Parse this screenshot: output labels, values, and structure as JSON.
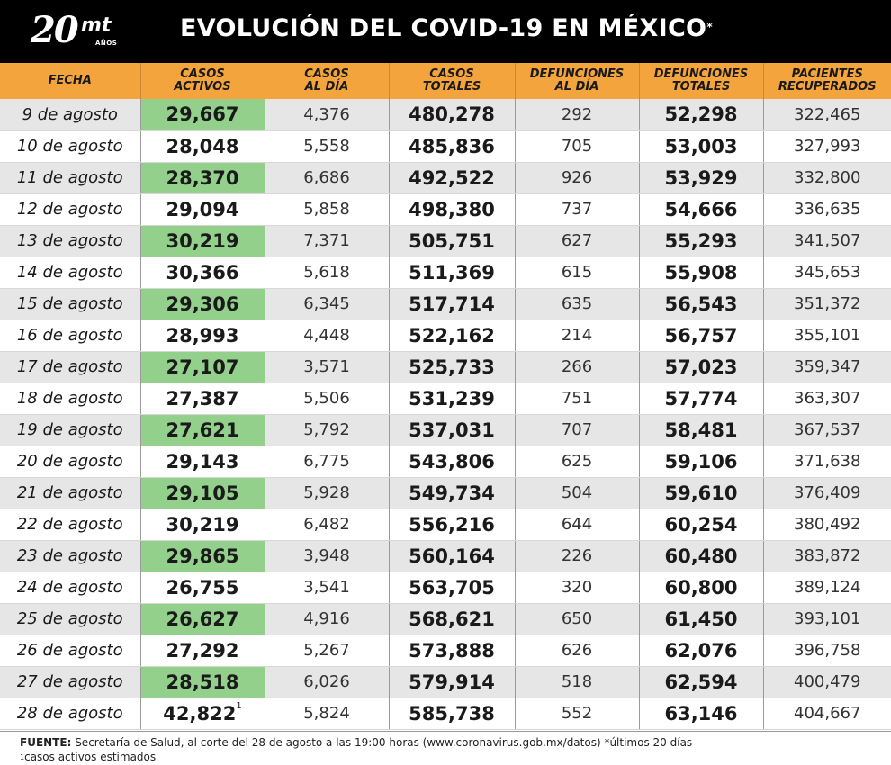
{
  "header": {
    "logo_number": "20",
    "logo_brand": "mt",
    "logo_sub": "AÑOS",
    "title": "EVOLUCIÓN DEL COVID-19 EN MÉXICO",
    "title_mark": "*"
  },
  "table": {
    "columns": [
      [
        "FECHA"
      ],
      [
        "CASOS",
        "ACTIVOS"
      ],
      [
        "CASOS",
        "AL DÍA"
      ],
      [
        "CASOS",
        "TOTALES"
      ],
      [
        "DEFUNCIONES",
        "AL DÍA"
      ],
      [
        "DEFUNCIONES",
        "TOTALES"
      ],
      [
        "PACIENTES",
        "RECUPERADOS"
      ]
    ],
    "rows": [
      [
        "9 de agosto",
        "29,667",
        "4,376",
        "480,278",
        "292",
        "52,298",
        "322,465"
      ],
      [
        "10 de agosto",
        "28,048",
        "5,558",
        "485,836",
        "705",
        "53,003",
        "327,993"
      ],
      [
        "11 de agosto",
        "28,370",
        "6,686",
        "492,522",
        "926",
        "53,929",
        "332,800"
      ],
      [
        "12 de agosto",
        "29,094",
        "5,858",
        "498,380",
        "737",
        "54,666",
        "336,635"
      ],
      [
        "13 de agosto",
        "30,219",
        "7,371",
        "505,751",
        "627",
        "55,293",
        "341,507"
      ],
      [
        "14 de agosto",
        "30,366",
        "5,618",
        "511,369",
        "615",
        "55,908",
        "345,653"
      ],
      [
        "15 de agosto",
        "29,306",
        "6,345",
        "517,714",
        "635",
        "56,543",
        "351,372"
      ],
      [
        "16 de agosto",
        "28,993",
        "4,448",
        "522,162",
        "214",
        "56,757",
        "355,101"
      ],
      [
        "17 de agosto",
        "27,107",
        "3,571",
        "525,733",
        "266",
        "57,023",
        "359,347"
      ],
      [
        "18 de agosto",
        "27,387",
        "5,506",
        "531,239",
        "751",
        "57,774",
        "363,307"
      ],
      [
        "19 de agosto",
        "27,621",
        "5,792",
        "537,031",
        "707",
        "58,481",
        "367,537"
      ],
      [
        "20 de agosto",
        "29,143",
        "6,775",
        "543,806",
        "625",
        "59,106",
        "371,638"
      ],
      [
        "21 de agosto",
        "29,105",
        "5,928",
        "549,734",
        "504",
        "59,610",
        "376,409"
      ],
      [
        "22 de agosto",
        "30,219",
        "6,482",
        "556,216",
        "644",
        "60,254",
        "380,492"
      ],
      [
        "23 de agosto",
        "29,865",
        "3,948",
        "560,164",
        "226",
        "60,480",
        "383,872"
      ],
      [
        "24 de agosto",
        "26,755",
        "3,541",
        "563,705",
        "320",
        "60,800",
        "389,124"
      ],
      [
        "25 de agosto",
        "26,627",
        "4,916",
        "568,621",
        "650",
        "61,450",
        "393,101"
      ],
      [
        "26 de agosto",
        "27,292",
        "5,267",
        "573,888",
        "626",
        "62,076",
        "396,758"
      ],
      [
        "27 de agosto",
        "28,518",
        "6,026",
        "579,914",
        "518",
        "62,594",
        "400,479"
      ],
      [
        "28 de agosto",
        "42,822",
        "5,824",
        "585,738",
        "552",
        "63,146",
        "404,667"
      ]
    ],
    "last_row_marker": "1"
  },
  "footer": {
    "source_label": "FUENTE:",
    "source_text": " Secretaría de Salud, al corte del 28 de agosto a las 19:00 horas (www.coronavirus.gob.mx/datos) *últimos 20 días",
    "note_marker": "1",
    "note_text": "casos activos estimados"
  },
  "colors": {
    "header_bg": "#000000",
    "column_header_bg": "#f4a43c",
    "active_highlight": "#93d08c",
    "row_stripe": "#e6e6e6"
  }
}
